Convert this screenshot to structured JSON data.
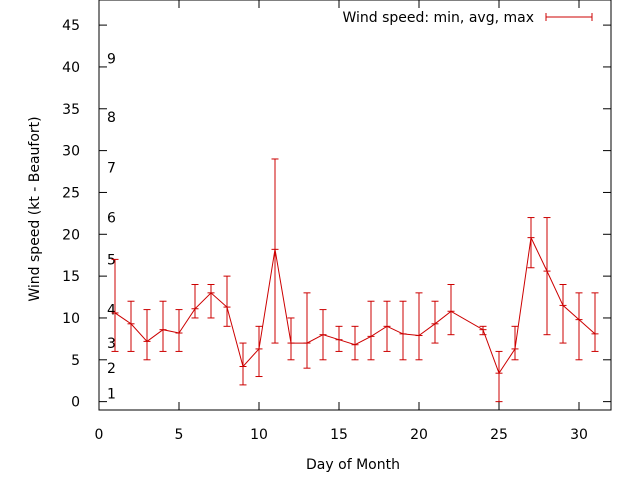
{
  "chart_data": {
    "type": "line",
    "xlabel": "Day of Month",
    "ylabel": "Wind speed (kt - Beaufort)",
    "xlim": [
      0,
      32
    ],
    "ylim": [
      -1,
      48
    ],
    "xticks": [
      0,
      5,
      10,
      15,
      20,
      25,
      30
    ],
    "yticks": [
      0,
      5,
      10,
      15,
      20,
      25,
      30,
      35,
      40,
      45
    ],
    "grid": false,
    "legend_position": "top-right",
    "beaufort_labels": [
      {
        "label": "1",
        "y": 1
      },
      {
        "label": "2",
        "y": 4
      },
      {
        "label": "3",
        "y": 7
      },
      {
        "label": "4",
        "y": 11
      },
      {
        "label": "5",
        "y": 17
      },
      {
        "label": "6",
        "y": 22
      },
      {
        "label": "7",
        "y": 28
      },
      {
        "label": "8",
        "y": 34
      },
      {
        "label": "9",
        "y": 41
      }
    ],
    "series": [
      {
        "name": "Wind speed: min, avg, max",
        "color": "#cc0000",
        "points": [
          {
            "x": 1,
            "y": 10.6,
            "min": 6,
            "max": 17
          },
          {
            "x": 2,
            "y": 9.3,
            "min": 6,
            "max": 12
          },
          {
            "x": 3,
            "y": 7.2,
            "min": 5,
            "max": 11
          },
          {
            "x": 4,
            "y": 8.6,
            "min": 6,
            "max": 12
          },
          {
            "x": 5,
            "y": 8.2,
            "min": 6,
            "max": 11
          },
          {
            "x": 6,
            "y": 11.1,
            "min": 10,
            "max": 14
          },
          {
            "x": 7,
            "y": 13.0,
            "min": 10,
            "max": 14
          },
          {
            "x": 8,
            "y": 11.3,
            "min": 9,
            "max": 15
          },
          {
            "x": 9,
            "y": 4.2,
            "min": 2,
            "max": 7
          },
          {
            "x": 10,
            "y": 6.3,
            "min": 3,
            "max": 9
          },
          {
            "x": 11,
            "y": 18.2,
            "min": 7,
            "max": 29
          },
          {
            "x": 12,
            "y": 7.0,
            "min": 5,
            "max": 10
          },
          {
            "x": 13,
            "y": 7.0,
            "min": 4,
            "max": 13
          },
          {
            "x": 14,
            "y": 8.0,
            "min": 5,
            "max": 11
          },
          {
            "x": 15,
            "y": 7.4,
            "min": 6,
            "max": 9
          },
          {
            "x": 16,
            "y": 6.8,
            "min": 5,
            "max": 9
          },
          {
            "x": 17,
            "y": 7.8,
            "min": 5,
            "max": 12
          },
          {
            "x": 18,
            "y": 9.0,
            "min": 6,
            "max": 12
          },
          {
            "x": 19,
            "y": 8.1,
            "min": 5,
            "max": 12
          },
          {
            "x": 20,
            "y": 7.9,
            "min": 5,
            "max": 13
          },
          {
            "x": 21,
            "y": 9.3,
            "min": 7,
            "max": 12
          },
          {
            "x": 22,
            "y": 10.8,
            "min": 8,
            "max": 14
          },
          {
            "x": 24,
            "y": 8.6,
            "min": 8,
            "max": 9
          },
          {
            "x": 25,
            "y": 3.4,
            "min": 0,
            "max": 6
          },
          {
            "x": 26,
            "y": 6.3,
            "min": 5,
            "max": 9
          },
          {
            "x": 27,
            "y": 19.6,
            "min": 16,
            "max": 22
          },
          {
            "x": 28,
            "y": 15.6,
            "min": 8,
            "max": 22
          },
          {
            "x": 29,
            "y": 11.5,
            "min": 7,
            "max": 14
          },
          {
            "x": 30,
            "y": 9.8,
            "min": 5,
            "max": 13
          },
          {
            "x": 31,
            "y": 8.1,
            "min": 6,
            "max": 13
          }
        ]
      }
    ]
  }
}
